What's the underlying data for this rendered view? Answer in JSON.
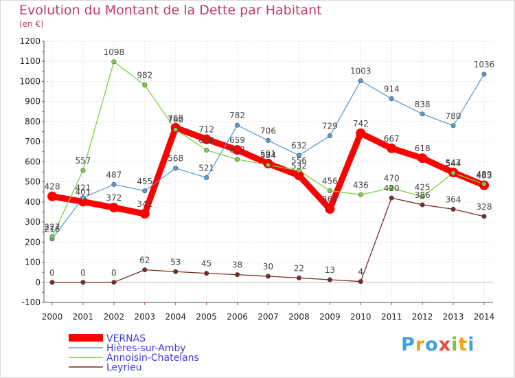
{
  "chart_data": {
    "type": "line",
    "title": "Evolution du Montant de la Dette par Habitant",
    "subtitle": "(en €)",
    "x": [
      2000,
      2001,
      2002,
      2003,
      2004,
      2005,
      2006,
      2007,
      2008,
      2009,
      2010,
      2011,
      2012,
      2013,
      2014
    ],
    "x_tick_labels": [
      "2000",
      "2001",
      "2002",
      "2003",
      "2004",
      "2005",
      "2006",
      "2007",
      "2008",
      "2009",
      "2010",
      "2011",
      "2012",
      "2013",
      "2014"
    ],
    "y_ticks": [
      -100,
      0,
      100,
      200,
      300,
      400,
      500,
      600,
      700,
      800,
      900,
      1000,
      1100,
      1200
    ],
    "y_tick_labels": [
      "-100",
      "0",
      "100",
      "200",
      "300",
      "400",
      "500",
      "600",
      "700",
      "800",
      "900",
      "1000",
      "1100",
      "1200"
    ],
    "ylim": [
      -100,
      1200
    ],
    "grid": true,
    "legend_position": "bottom-left",
    "series": [
      {
        "name": "VERNAS",
        "color": "#ff0000",
        "values": [
          428,
          401,
          372,
          341,
          769,
          712,
          659,
          591,
          532,
          365,
          742,
          667,
          618,
          547,
          483
        ],
        "labels": [
          "428",
          "401",
          "372",
          "341",
          "769",
          "712",
          "659",
          "591",
          "532",
          "365",
          "742",
          "667",
          "618",
          "547",
          "483"
        ]
      },
      {
        "name": "Hières-sur-Amby",
        "color": "#5b9bd5",
        "values": [
          216,
          421,
          487,
          455,
          568,
          521,
          782,
          706,
          632,
          729,
          1003,
          914,
          838,
          780,
          1036
        ],
        "labels": [
          "216",
          "421",
          "487",
          "455",
          "568",
          "521",
          "782",
          "706",
          "632",
          "729",
          "1003",
          "914",
          "838",
          "780",
          "1036"
        ]
      },
      {
        "name": "Annoisin-Chatelans",
        "color": "#7dd040",
        "values": [
          227,
          557,
          1098,
          982,
          760,
          658,
          612,
          584,
          556,
          456,
          436,
          470,
          425,
          544,
          489
        ],
        "labels": [
          "227",
          "557",
          "1098",
          "982",
          "760",
          "658",
          "612",
          "584",
          "556",
          "456",
          "436",
          "470",
          "425",
          "544",
          "489"
        ]
      },
      {
        "name": "Leyrieu",
        "color": "#7a2a2a",
        "values": [
          0,
          0,
          0,
          62,
          53,
          45,
          38,
          30,
          22,
          13,
          4,
          420,
          386,
          364,
          328
        ],
        "labels": [
          "0",
          "0",
          "0",
          "62",
          "53",
          "45",
          "38",
          "30",
          "22",
          "13",
          "4",
          "420",
          "386",
          "364",
          "328"
        ]
      }
    ]
  },
  "logo": {
    "letters": [
      "P",
      "r",
      "o",
      "x",
      "i",
      "t",
      "i"
    ],
    "colors": [
      "#3fa0dc",
      "#f2a21a",
      "#3fa0dc",
      "#e64b3c",
      "#78c23c",
      "#f2a21a",
      "#3fa0dc"
    ]
  }
}
